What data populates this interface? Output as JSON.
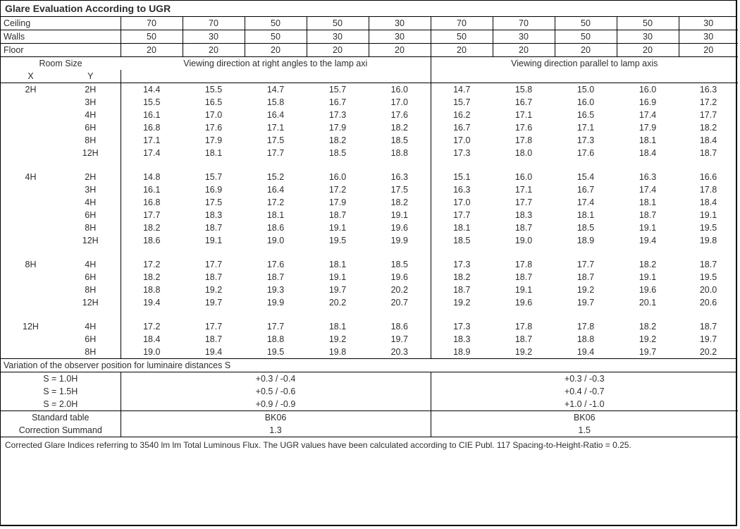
{
  "title": "Glare Evaluation According to UGR",
  "headerRows": {
    "Ceiling": [
      "70",
      "70",
      "50",
      "50",
      "30",
      "70",
      "70",
      "50",
      "50",
      "30"
    ],
    "Walls": [
      "50",
      "30",
      "50",
      "30",
      "30",
      "50",
      "30",
      "50",
      "30",
      "30"
    ],
    "Floor": [
      "20",
      "20",
      "20",
      "20",
      "20",
      "20",
      "20",
      "20",
      "20",
      "20"
    ]
  },
  "roomSizeLabel": "Room Size",
  "xLabel": "X",
  "yLabel": "Y",
  "viewRight": "Viewing direction at right angles to the lamp axi",
  "viewParallel": "Viewing direction parallel to lamp axis",
  "groups": [
    {
      "x": "2H",
      "rows": [
        {
          "y": "2H",
          "a": [
            "14.4",
            "15.5",
            "14.7",
            "15.7",
            "16.0"
          ],
          "b": [
            "14.7",
            "15.8",
            "15.0",
            "16.0",
            "16.3"
          ]
        },
        {
          "y": "3H",
          "a": [
            "15.5",
            "16.5",
            "15.8",
            "16.7",
            "17.0"
          ],
          "b": [
            "15.7",
            "16.7",
            "16.0",
            "16.9",
            "17.2"
          ]
        },
        {
          "y": "4H",
          "a": [
            "16.1",
            "17.0",
            "16.4",
            "17.3",
            "17.6"
          ],
          "b": [
            "16.2",
            "17.1",
            "16.5",
            "17.4",
            "17.7"
          ]
        },
        {
          "y": "6H",
          "a": [
            "16.8",
            "17.6",
            "17.1",
            "17.9",
            "18.2"
          ],
          "b": [
            "16.7",
            "17.6",
            "17.1",
            "17.9",
            "18.2"
          ]
        },
        {
          "y": "8H",
          "a": [
            "17.1",
            "17.9",
            "17.5",
            "18.2",
            "18.5"
          ],
          "b": [
            "17.0",
            "17.8",
            "17.3",
            "18.1",
            "18.4"
          ]
        },
        {
          "y": "12H",
          "a": [
            "17.4",
            "18.1",
            "17.7",
            "18.5",
            "18.8"
          ],
          "b": [
            "17.3",
            "18.0",
            "17.6",
            "18.4",
            "18.7"
          ]
        }
      ]
    },
    {
      "x": "4H",
      "rows": [
        {
          "y": "2H",
          "a": [
            "14.8",
            "15.7",
            "15.2",
            "16.0",
            "16.3"
          ],
          "b": [
            "15.1",
            "16.0",
            "15.4",
            "16.3",
            "16.6"
          ]
        },
        {
          "y": "3H",
          "a": [
            "16.1",
            "16.9",
            "16.4",
            "17.2",
            "17.5"
          ],
          "b": [
            "16.3",
            "17.1",
            "16.7",
            "17.4",
            "17.8"
          ]
        },
        {
          "y": "4H",
          "a": [
            "16.8",
            "17.5",
            "17.2",
            "17.9",
            "18.2"
          ],
          "b": [
            "17.0",
            "17.7",
            "17.4",
            "18.1",
            "18.4"
          ]
        },
        {
          "y": "6H",
          "a": [
            "17.7",
            "18.3",
            "18.1",
            "18.7",
            "19.1"
          ],
          "b": [
            "17.7",
            "18.3",
            "18.1",
            "18.7",
            "19.1"
          ]
        },
        {
          "y": "8H",
          "a": [
            "18.2",
            "18.7",
            "18.6",
            "19.1",
            "19.6"
          ],
          "b": [
            "18.1",
            "18.7",
            "18.5",
            "19.1",
            "19.5"
          ]
        },
        {
          "y": "12H",
          "a": [
            "18.6",
            "19.1",
            "19.0",
            "19.5",
            "19.9"
          ],
          "b": [
            "18.5",
            "19.0",
            "18.9",
            "19.4",
            "19.8"
          ]
        }
      ]
    },
    {
      "x": "8H",
      "rows": [
        {
          "y": "4H",
          "a": [
            "17.2",
            "17.7",
            "17.6",
            "18.1",
            "18.5"
          ],
          "b": [
            "17.3",
            "17.8",
            "17.7",
            "18.2",
            "18.7"
          ]
        },
        {
          "y": "6H",
          "a": [
            "18.2",
            "18.7",
            "18.7",
            "19.1",
            "19.6"
          ],
          "b": [
            "18.2",
            "18.7",
            "18.7",
            "19.1",
            "19.5"
          ]
        },
        {
          "y": "8H",
          "a": [
            "18.8",
            "19.2",
            "19.3",
            "19.7",
            "20.2"
          ],
          "b": [
            "18.7",
            "19.1",
            "19.2",
            "19.6",
            "20.0"
          ]
        },
        {
          "y": "12H",
          "a": [
            "19.4",
            "19.7",
            "19.9",
            "20.2",
            "20.7"
          ],
          "b": [
            "19.2",
            "19.6",
            "19.7",
            "20.1",
            "20.6"
          ]
        }
      ]
    },
    {
      "x": "12H",
      "rows": [
        {
          "y": "4H",
          "a": [
            "17.2",
            "17.7",
            "17.7",
            "18.1",
            "18.6"
          ],
          "b": [
            "17.3",
            "17.8",
            "17.8",
            "18.2",
            "18.7"
          ]
        },
        {
          "y": "6H",
          "a": [
            "18.4",
            "18.7",
            "18.8",
            "19.2",
            "19.7"
          ],
          "b": [
            "18.3",
            "18.7",
            "18.8",
            "19.2",
            "19.7"
          ]
        },
        {
          "y": "8H",
          "a": [
            "19.0",
            "19.4",
            "19.5",
            "19.8",
            "20.3"
          ],
          "b": [
            "18.9",
            "19.2",
            "19.4",
            "19.7",
            "20.2"
          ]
        }
      ]
    }
  ],
  "variationTitle": "Variation of the observer position for luminaire distances S",
  "variationRows": [
    {
      "s": "S = 1.0H",
      "a": "+0.3 / -0.4",
      "b": "+0.3 / -0.3"
    },
    {
      "s": "S = 1.5H",
      "a": "+0.5 / -0.6",
      "b": "+0.4 / -0.7"
    },
    {
      "s": "S = 2.0H",
      "a": "+0.9 / -0.9",
      "b": "+1.0 / -1.0"
    }
  ],
  "stdTableLabel": "Standard table",
  "stdTable": {
    "a": "BK06",
    "b": "BK06"
  },
  "corrLabel": "Correction Summand",
  "corr": {
    "a": "1.3",
    "b": "1.5"
  },
  "footnote": "Corrected Glare Indices referring to 3540 lm lm Total Luminous Flux. The UGR values have been calculated according to CIE Publ. 117    Spacing-to-Height-Ratio = 0.25.",
  "style": {
    "text_color": "#2e2e2e",
    "border_color": "#000000",
    "background_color": "#ffffff"
  }
}
